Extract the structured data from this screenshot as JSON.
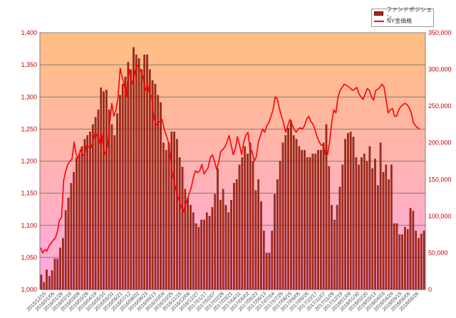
{
  "legend": {
    "bar_label": "ファンドポジション",
    "line_label": "NY金価格"
  },
  "colors": {
    "bar_fill": "#a52a1a",
    "bar_border": "#5a0a00",
    "line": "#ff0000",
    "plot_top": "#ffbf80",
    "plot_bottom": "#ffa8e0",
    "tick_text": "#c00000",
    "gridline": "#666666"
  },
  "chart_data": {
    "type": "bar+line",
    "title": "",
    "left_axis": {
      "ylim": [
        1000,
        1400
      ],
      "ticks": [
        "1,000",
        "1,050",
        "1,100",
        "1,150",
        "1,200",
        "1,250",
        "1,300",
        "1,350",
        "1,400"
      ]
    },
    "right_axis": {
      "ylim": [
        0,
        350000
      ],
      "ticks": [
        "0",
        "50,000",
        "100,000",
        "150,000",
        "200,000",
        "250,000",
        "300,000",
        "350,000"
      ]
    },
    "grid": "horizontal",
    "legend_position": "top-right",
    "x_tick_labels": [
      "2015/12/15",
      "2016/01/05",
      "2016/01/26",
      "2016/02/16",
      "2016/03/08",
      "2016/03/29",
      "2016/04/19",
      "2016/05/10",
      "2016/05/31",
      "2016/06/21",
      "2016/07/12",
      "2016/08/02",
      "2016/08/23",
      "2016/09/13",
      "2016/10/04",
      "2016/10/25",
      "2016/11/15",
      "2016/12/06",
      "2016/12/27",
      "2017/01/17",
      "2017/02/07",
      "2017/02/28",
      "2017/03/21",
      "2017/04/11",
      "2017/05/02",
      "2017/05/23",
      "2017/06/13",
      "2017/07/04",
      "2017/07/25",
      "2017/08/15",
      "2017/09/05",
      "2017/09/26",
      "2017/10/17",
      "2017/11/07",
      "2017/11/28",
      "2017/12/19",
      "2018/01/09",
      "2018/01/30",
      "2018/02/20",
      "2018/03/13",
      "2018/04/03",
      "2018/04/24",
      "2018/05/15",
      "2018/06/05",
      "2018/06/26"
    ],
    "series": [
      {
        "name": "ファンドポジション",
        "axis": "right",
        "kind": "bar",
        "values": [
          20000,
          10000,
          27000,
          18000,
          26000,
          42000,
          42000,
          57000,
          70000,
          108000,
          125000,
          145000,
          160000,
          180000,
          185000,
          195000,
          205000,
          210000,
          215000,
          225000,
          235000,
          245000,
          275000,
          270000,
          272000,
          245000,
          225000,
          210000,
          240000,
          265000,
          280000,
          290000,
          310000,
          300000,
          330000,
          320000,
          315000,
          300000,
          320000,
          320000,
          300000,
          285000,
          280000,
          265000,
          255000,
          200000,
          190000,
          200000,
          215000,
          215000,
          205000,
          180000,
          167000,
          137000,
          125000,
          115000,
          105000,
          90000,
          85000,
          95000,
          95000,
          105000,
          100000,
          112000,
          130000,
          165000,
          122000,
          137000,
          115000,
          105000,
          122000,
          145000,
          150000,
          170000,
          180000,
          195000,
          185000,
          200000,
          175000,
          135000,
          150000,
          120000,
          80000,
          50000,
          50000,
          80000,
          130000,
          150000,
          175000,
          200000,
          210000,
          220000,
          230000,
          210000,
          205000,
          195000,
          190000,
          190000,
          180000,
          180000,
          185000,
          185000,
          190000,
          190000,
          200000,
          225000,
          168000,
          115000,
          95000,
          115000,
          140000,
          170000,
          205000,
          213000,
          215000,
          208000,
          180000,
          170000,
          180000,
          185000,
          175000,
          195000,
          165000,
          178000,
          142000,
          200000,
          160000,
          170000,
          150000,
          170000,
          90000,
          90000,
          75000,
          75000,
          85000,
          82000,
          111000,
          107000,
          80000,
          70000,
          76000,
          80000
        ]
      },
      {
        "name": "NY金価格",
        "axis": "left",
        "kind": "line",
        "values": [
          1065,
          1057,
          1062,
          1060,
          1068,
          1072,
          1077,
          1080,
          1090,
          1108,
          1112,
          1170,
          1185,
          1195,
          1200,
          1203,
          1230,
          1210,
          1205,
          1218,
          1210,
          1208,
          1225,
          1222,
          1220,
          1230,
          1245,
          1240,
          1228,
          1245,
          1220,
          1210,
          1225,
          1260,
          1290,
          1270,
          1280,
          1300,
          1345,
          1330,
          1318,
          1300,
          1345,
          1330,
          1320,
          1338,
          1350,
          1345,
          1340,
          1330,
          1310,
          1320,
          1305,
          1300,
          1270,
          1255,
          1260,
          1262,
          1265,
          1250,
          1240,
          1230,
          1205,
          1180,
          1165,
          1150,
          1140,
          1130,
          1120,
          1130,
          1140,
          1150,
          1160,
          1175,
          1185,
          1182,
          1185,
          1195,
          1180,
          1185,
          1190,
          1205,
          1210,
          1200,
          1187,
          1198,
          1215,
          1218,
          1222,
          1230,
          1240,
          1225,
          1210,
          1220,
          1238,
          1225,
          1210,
          1230,
          1240,
          1245,
          1220,
          1215,
          1200,
          1207,
          1230,
          1240,
          1250,
          1245,
          1255,
          1260,
          1270,
          1280,
          1300,
          1297,
          1282,
          1270,
          1260,
          1245,
          1255,
          1265,
          1258,
          1250,
          1245,
          1250,
          1252,
          1250,
          1255,
          1265,
          1270,
          1262,
          1258,
          1250,
          1238,
          1230,
          1225,
          1225,
          1210,
          1210,
          1230,
          1260,
          1280,
          1275,
          1300,
          1310,
          1315,
          1320,
          1318,
          1316,
          1313,
          1310,
          1312,
          1315,
          1305,
          1300,
          1296,
          1305,
          1313,
          1310,
          1300,
          1295,
          1310,
          1312,
          1315,
          1320,
          1315,
          1295,
          1275,
          1280,
          1282,
          1270,
          1270,
          1280,
          1285,
          1288,
          1290,
          1288,
          1283,
          1275,
          1260,
          1255,
          1252,
          1250
        ]
      }
    ]
  }
}
